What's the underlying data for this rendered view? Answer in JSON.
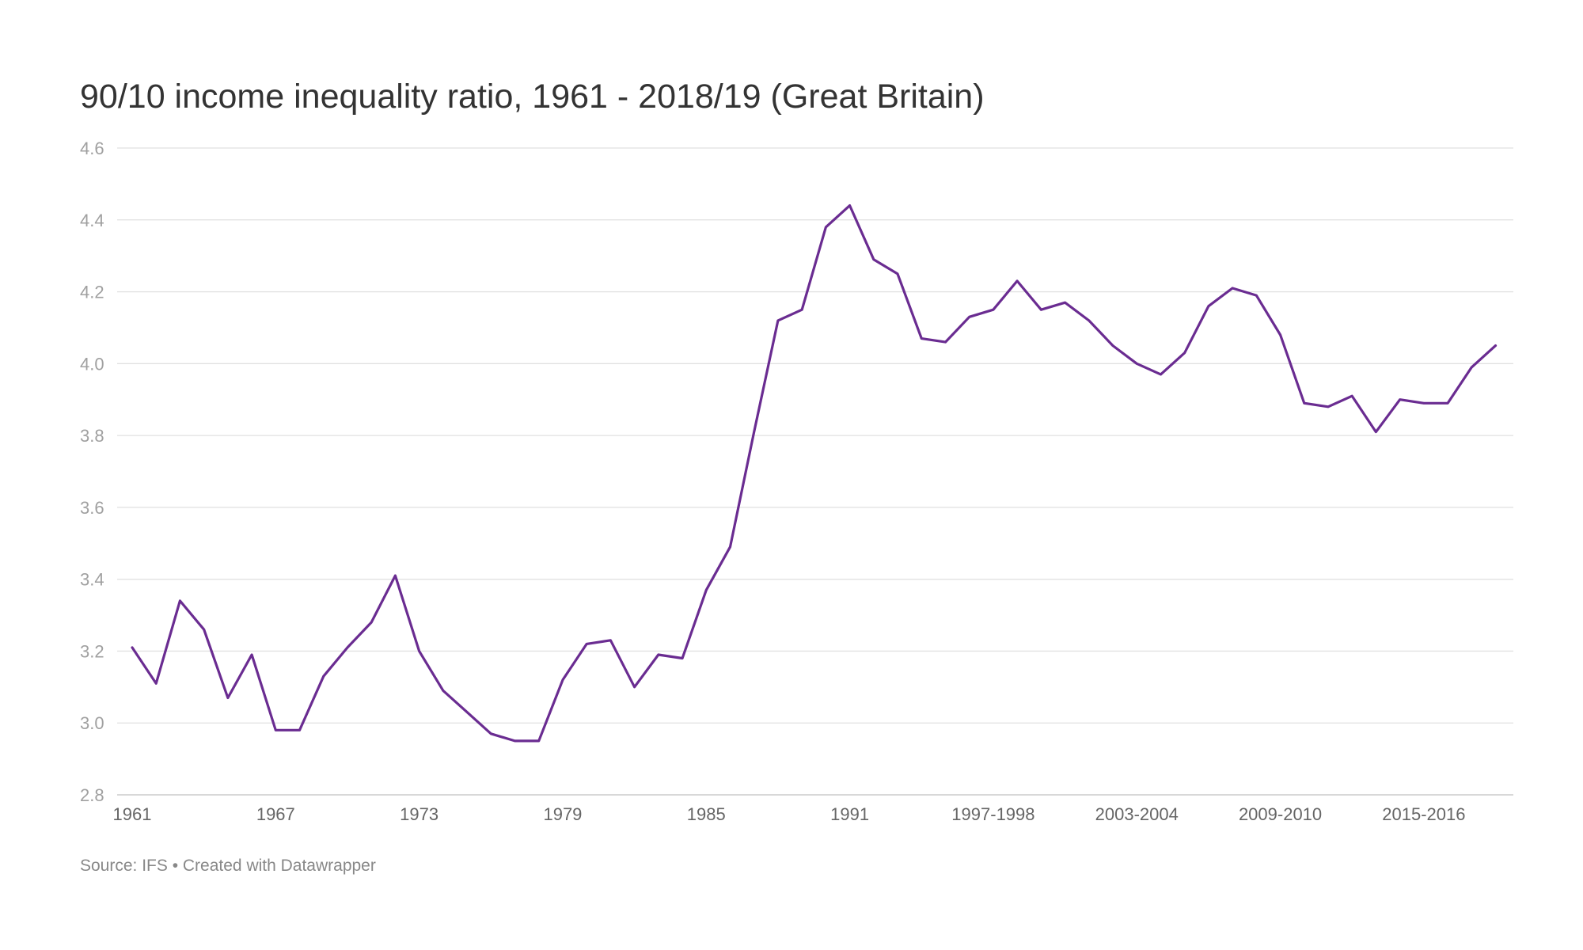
{
  "chart_data": {
    "type": "line",
    "title": "90/10 income inequality ratio, 1961 - 2018/19 (Great Britain)",
    "source": "Source: IFS • Created with Datawrapper",
    "xlabel": "",
    "ylabel": "",
    "ylim": [
      2.8,
      4.6
    ],
    "yticks": [
      4.6,
      4.4,
      4.2,
      4.0,
      3.8,
      3.6,
      3.4,
      3.2,
      3.0,
      2.8
    ],
    "ytick_labels": [
      "4.6",
      "4.4",
      "4.2",
      "4.0",
      "3.8",
      "3.6",
      "3.4",
      "3.2",
      "3.0",
      "2.8"
    ],
    "x": [
      1961,
      1962,
      1963,
      1964,
      1965,
      1966,
      1967,
      1968,
      1969,
      1970,
      1971,
      1972,
      1973,
      1974,
      1975,
      1976,
      1977,
      1978,
      1979,
      1980,
      1981,
      1982,
      1983,
      1984,
      1985,
      1986,
      1987,
      1988,
      1989,
      1990,
      1991,
      1992,
      1993,
      1994,
      1995,
      1996,
      1997,
      1998,
      1999,
      2000,
      2001,
      2002,
      2003,
      2004,
      2005,
      2006,
      2007,
      2008,
      2009,
      2010,
      2011,
      2012,
      2013,
      2014,
      2015,
      2016,
      2017,
      2018
    ],
    "xticks": [
      {
        "x": 1961,
        "label": "1961"
      },
      {
        "x": 1967,
        "label": "1967"
      },
      {
        "x": 1973,
        "label": "1973"
      },
      {
        "x": 1979,
        "label": "1979"
      },
      {
        "x": 1985,
        "label": "1985"
      },
      {
        "x": 1991,
        "label": "1991"
      },
      {
        "x": 1997,
        "label": "1997-1998"
      },
      {
        "x": 2003,
        "label": "2003-2004"
      },
      {
        "x": 2009,
        "label": "2009-2010"
      },
      {
        "x": 2015,
        "label": "2015-2016"
      }
    ],
    "series": [
      {
        "name": "",
        "color": "#6a2c91",
        "values": [
          3.21,
          3.11,
          3.34,
          3.26,
          3.07,
          3.19,
          2.98,
          2.98,
          3.13,
          3.21,
          3.28,
          3.41,
          3.2,
          3.09,
          3.03,
          2.97,
          2.95,
          2.95,
          3.12,
          3.22,
          3.23,
          3.1,
          3.19,
          3.18,
          3.37,
          3.49,
          3.81,
          4.12,
          4.15,
          4.38,
          4.44,
          4.29,
          4.25,
          4.07,
          4.06,
          4.13,
          4.15,
          4.23,
          4.15,
          4.17,
          4.12,
          4.05,
          4.0,
          3.97,
          4.03,
          4.16,
          4.21,
          4.19,
          4.08,
          3.89,
          3.88,
          3.91,
          3.81,
          3.9,
          3.89,
          3.89,
          3.99,
          4.05
        ]
      }
    ],
    "grid": true,
    "legend": "none",
    "gridline_color": "#e1e1e1",
    "axis_color": "#a0a0a0"
  }
}
